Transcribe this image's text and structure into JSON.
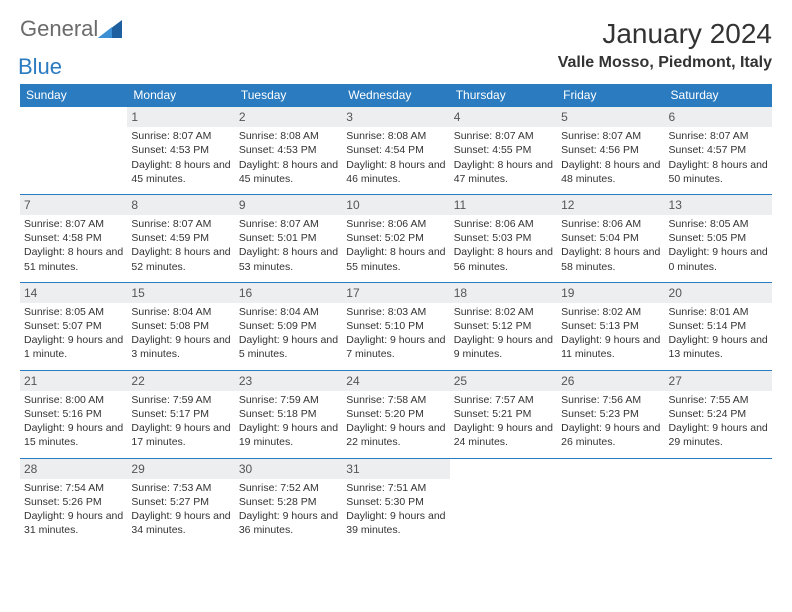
{
  "logo": {
    "textGeneral": "General",
    "textBlue": "Blue"
  },
  "title": "January 2024",
  "location": "Valle Mosso, Piedmont, Italy",
  "colors": {
    "headerBg": "#2a7bc0",
    "headerText": "#ffffff",
    "dayNumBg": "#eceeef",
    "border": "#2a7bc0",
    "body": "#333333",
    "logoGray": "#6b6b6b",
    "logoBlue": "#2a7bc0"
  },
  "weekdays": [
    "Sunday",
    "Monday",
    "Tuesday",
    "Wednesday",
    "Thursday",
    "Friday",
    "Saturday"
  ],
  "weeks": [
    [
      {
        "blank": true
      },
      {
        "n": "1",
        "sunrise": "8:07 AM",
        "sunset": "4:53 PM",
        "daylight": "8 hours and 45 minutes."
      },
      {
        "n": "2",
        "sunrise": "8:08 AM",
        "sunset": "4:53 PM",
        "daylight": "8 hours and 45 minutes."
      },
      {
        "n": "3",
        "sunrise": "8:08 AM",
        "sunset": "4:54 PM",
        "daylight": "8 hours and 46 minutes."
      },
      {
        "n": "4",
        "sunrise": "8:07 AM",
        "sunset": "4:55 PM",
        "daylight": "8 hours and 47 minutes."
      },
      {
        "n": "5",
        "sunrise": "8:07 AM",
        "sunset": "4:56 PM",
        "daylight": "8 hours and 48 minutes."
      },
      {
        "n": "6",
        "sunrise": "8:07 AM",
        "sunset": "4:57 PM",
        "daylight": "8 hours and 50 minutes."
      }
    ],
    [
      {
        "n": "7",
        "sunrise": "8:07 AM",
        "sunset": "4:58 PM",
        "daylight": "8 hours and 51 minutes."
      },
      {
        "n": "8",
        "sunrise": "8:07 AM",
        "sunset": "4:59 PM",
        "daylight": "8 hours and 52 minutes."
      },
      {
        "n": "9",
        "sunrise": "8:07 AM",
        "sunset": "5:01 PM",
        "daylight": "8 hours and 53 minutes."
      },
      {
        "n": "10",
        "sunrise": "8:06 AM",
        "sunset": "5:02 PM",
        "daylight": "8 hours and 55 minutes."
      },
      {
        "n": "11",
        "sunrise": "8:06 AM",
        "sunset": "5:03 PM",
        "daylight": "8 hours and 56 minutes."
      },
      {
        "n": "12",
        "sunrise": "8:06 AM",
        "sunset": "5:04 PM",
        "daylight": "8 hours and 58 minutes."
      },
      {
        "n": "13",
        "sunrise": "8:05 AM",
        "sunset": "5:05 PM",
        "daylight": "9 hours and 0 minutes."
      }
    ],
    [
      {
        "n": "14",
        "sunrise": "8:05 AM",
        "sunset": "5:07 PM",
        "daylight": "9 hours and 1 minute."
      },
      {
        "n": "15",
        "sunrise": "8:04 AM",
        "sunset": "5:08 PM",
        "daylight": "9 hours and 3 minutes."
      },
      {
        "n": "16",
        "sunrise": "8:04 AM",
        "sunset": "5:09 PM",
        "daylight": "9 hours and 5 minutes."
      },
      {
        "n": "17",
        "sunrise": "8:03 AM",
        "sunset": "5:10 PM",
        "daylight": "9 hours and 7 minutes."
      },
      {
        "n": "18",
        "sunrise": "8:02 AM",
        "sunset": "5:12 PM",
        "daylight": "9 hours and 9 minutes."
      },
      {
        "n": "19",
        "sunrise": "8:02 AM",
        "sunset": "5:13 PM",
        "daylight": "9 hours and 11 minutes."
      },
      {
        "n": "20",
        "sunrise": "8:01 AM",
        "sunset": "5:14 PM",
        "daylight": "9 hours and 13 minutes."
      }
    ],
    [
      {
        "n": "21",
        "sunrise": "8:00 AM",
        "sunset": "5:16 PM",
        "daylight": "9 hours and 15 minutes."
      },
      {
        "n": "22",
        "sunrise": "7:59 AM",
        "sunset": "5:17 PM",
        "daylight": "9 hours and 17 minutes."
      },
      {
        "n": "23",
        "sunrise": "7:59 AM",
        "sunset": "5:18 PM",
        "daylight": "9 hours and 19 minutes."
      },
      {
        "n": "24",
        "sunrise": "7:58 AM",
        "sunset": "5:20 PM",
        "daylight": "9 hours and 22 minutes."
      },
      {
        "n": "25",
        "sunrise": "7:57 AM",
        "sunset": "5:21 PM",
        "daylight": "9 hours and 24 minutes."
      },
      {
        "n": "26",
        "sunrise": "7:56 AM",
        "sunset": "5:23 PM",
        "daylight": "9 hours and 26 minutes."
      },
      {
        "n": "27",
        "sunrise": "7:55 AM",
        "sunset": "5:24 PM",
        "daylight": "9 hours and 29 minutes."
      }
    ],
    [
      {
        "n": "28",
        "sunrise": "7:54 AM",
        "sunset": "5:26 PM",
        "daylight": "9 hours and 31 minutes."
      },
      {
        "n": "29",
        "sunrise": "7:53 AM",
        "sunset": "5:27 PM",
        "daylight": "9 hours and 34 minutes."
      },
      {
        "n": "30",
        "sunrise": "7:52 AM",
        "sunset": "5:28 PM",
        "daylight": "9 hours and 36 minutes."
      },
      {
        "n": "31",
        "sunrise": "7:51 AM",
        "sunset": "5:30 PM",
        "daylight": "9 hours and 39 minutes."
      },
      {
        "blank": true
      },
      {
        "blank": true
      },
      {
        "blank": true
      }
    ]
  ],
  "labels": {
    "sunrise": "Sunrise: ",
    "sunset": "Sunset: ",
    "daylight": "Daylight: "
  }
}
